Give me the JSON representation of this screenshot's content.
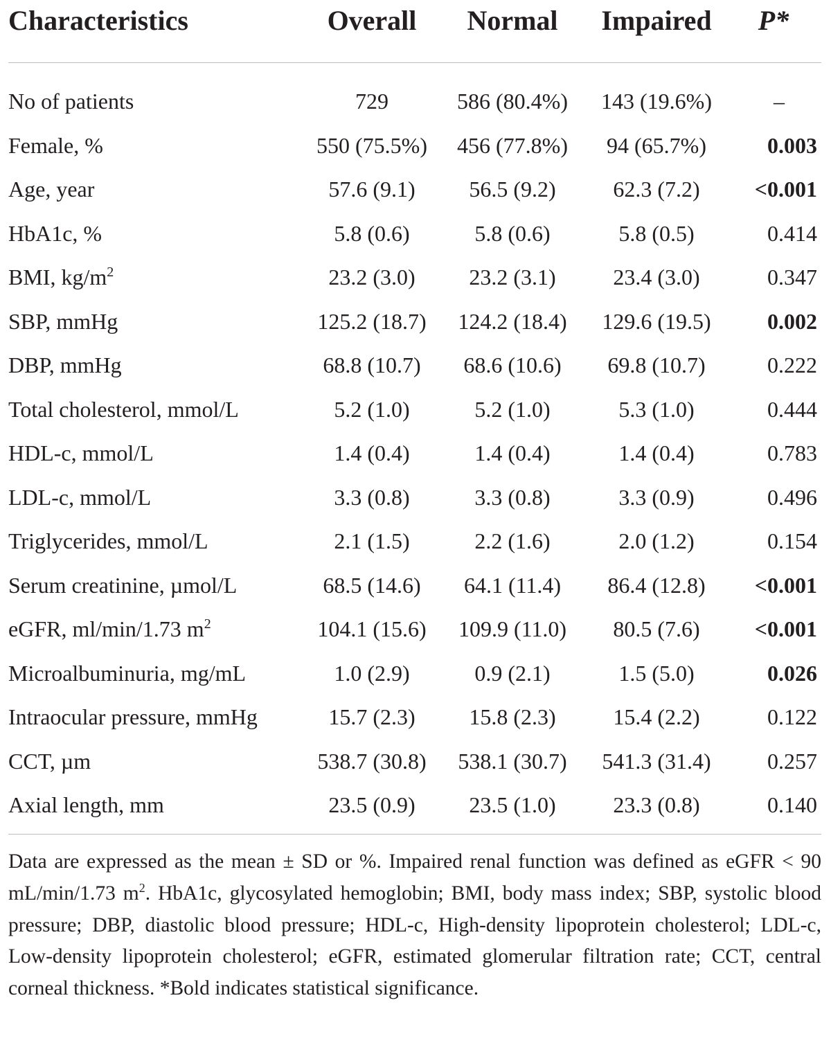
{
  "header": {
    "characteristics": "Characteristics",
    "overall": "Overall",
    "normal": "Normal",
    "impaired": "Impaired",
    "p": "P*"
  },
  "rows": [
    {
      "label": "No of patients",
      "sup": "",
      "overall": "729",
      "normal": "586 (80.4%)",
      "impaired": "143 (19.6%)",
      "p": "–",
      "significant": false
    },
    {
      "label": "Female, %",
      "sup": "",
      "overall": "550 (75.5%)",
      "normal": "456 (77.8%)",
      "impaired": "94 (65.7%)",
      "p": "0.003",
      "significant": true
    },
    {
      "label": "Age, year",
      "sup": "",
      "overall": "57.6 (9.1)",
      "normal": "56.5 (9.2)",
      "impaired": "62.3 (7.2)",
      "p": "<0.001",
      "significant": true
    },
    {
      "label": "HbA1c, %",
      "sup": "",
      "overall": "5.8 (0.6)",
      "normal": "5.8 (0.6)",
      "impaired": "5.8 (0.5)",
      "p": "0.414",
      "significant": false
    },
    {
      "label": "BMI, kg/m",
      "sup": "2",
      "overall": "23.2 (3.0)",
      "normal": "23.2 (3.1)",
      "impaired": "23.4 (3.0)",
      "p": "0.347",
      "significant": false
    },
    {
      "label": "SBP, mmHg",
      "sup": "",
      "overall": "125.2 (18.7)",
      "normal": "124.2 (18.4)",
      "impaired": "129.6 (19.5)",
      "p": "0.002",
      "significant": true
    },
    {
      "label": "DBP, mmHg",
      "sup": "",
      "overall": "68.8 (10.7)",
      "normal": "68.6 (10.6)",
      "impaired": "69.8 (10.7)",
      "p": "0.222",
      "significant": false
    },
    {
      "label": "Total cholesterol, mmol/L",
      "sup": "",
      "overall": "5.2 (1.0)",
      "normal": "5.2 (1.0)",
      "impaired": "5.3 (1.0)",
      "p": "0.444",
      "significant": false
    },
    {
      "label": "HDL-c, mmol/L",
      "sup": "",
      "overall": "1.4 (0.4)",
      "normal": "1.4 (0.4)",
      "impaired": "1.4 (0.4)",
      "p": "0.783",
      "significant": false
    },
    {
      "label": "LDL-c, mmol/L",
      "sup": "",
      "overall": "3.3 (0.8)",
      "normal": "3.3 (0.8)",
      "impaired": "3.3 (0.9)",
      "p": "0.496",
      "significant": false
    },
    {
      "label": "Triglycerides, mmol/L",
      "sup": "",
      "overall": "2.1 (1.5)",
      "normal": "2.2 (1.6)",
      "impaired": "2.0 (1.2)",
      "p": "0.154",
      "significant": false
    },
    {
      "label": "Serum creatinine, µmol/L",
      "sup": "",
      "overall": "68.5 (14.6)",
      "normal": "64.1 (11.4)",
      "impaired": "86.4 (12.8)",
      "p": "<0.001",
      "significant": true
    },
    {
      "label": "eGFR, ml/min/1.73 m",
      "sup": "2",
      "overall": "104.1 (15.6)",
      "normal": "109.9 (11.0)",
      "impaired": "80.5 (7.6)",
      "p": "<0.001",
      "significant": true
    },
    {
      "label": "Microalbuminuria, mg/mL",
      "sup": "",
      "overall": "1.0 (2.9)",
      "normal": "0.9 (2.1)",
      "impaired": "1.5 (5.0)",
      "p": "0.026",
      "significant": true
    },
    {
      "label": "Intraocular pressure, mmHg",
      "sup": "",
      "overall": "15.7 (2.3)",
      "normal": "15.8 (2.3)",
      "impaired": "15.4 (2.2)",
      "p": "0.122",
      "significant": false
    },
    {
      "label": "CCT, µm",
      "sup": "",
      "overall": "538.7 (30.8)",
      "normal": "538.1 (30.7)",
      "impaired": "541.3 (31.4)",
      "p": "0.257",
      "significant": false
    },
    {
      "label": "Axial length, mm",
      "sup": "",
      "overall": "23.5 (0.9)",
      "normal": "23.5 (1.0)",
      "impaired": "23.3 (0.8)",
      "p": "0.140",
      "significant": false
    }
  ],
  "footnote": {
    "part1": "Data are expressed as the mean ± SD or %. Impaired renal function was defined as eGFR < 90 mL/min/1.73 m",
    "sup": "2",
    "part2": ". HbA1c, glycosylated hemoglobin; BMI, body mass index; SBP, systolic blood pressure; DBP, diastolic blood pressure; HDL-c, High-density lipoprotein cholesterol; LDL-c, Low-density lipoprotein cholesterol; eGFR, estimated glomerular filtration rate; CCT, central corneal thickness. *Bold indicates statistical significance."
  }
}
